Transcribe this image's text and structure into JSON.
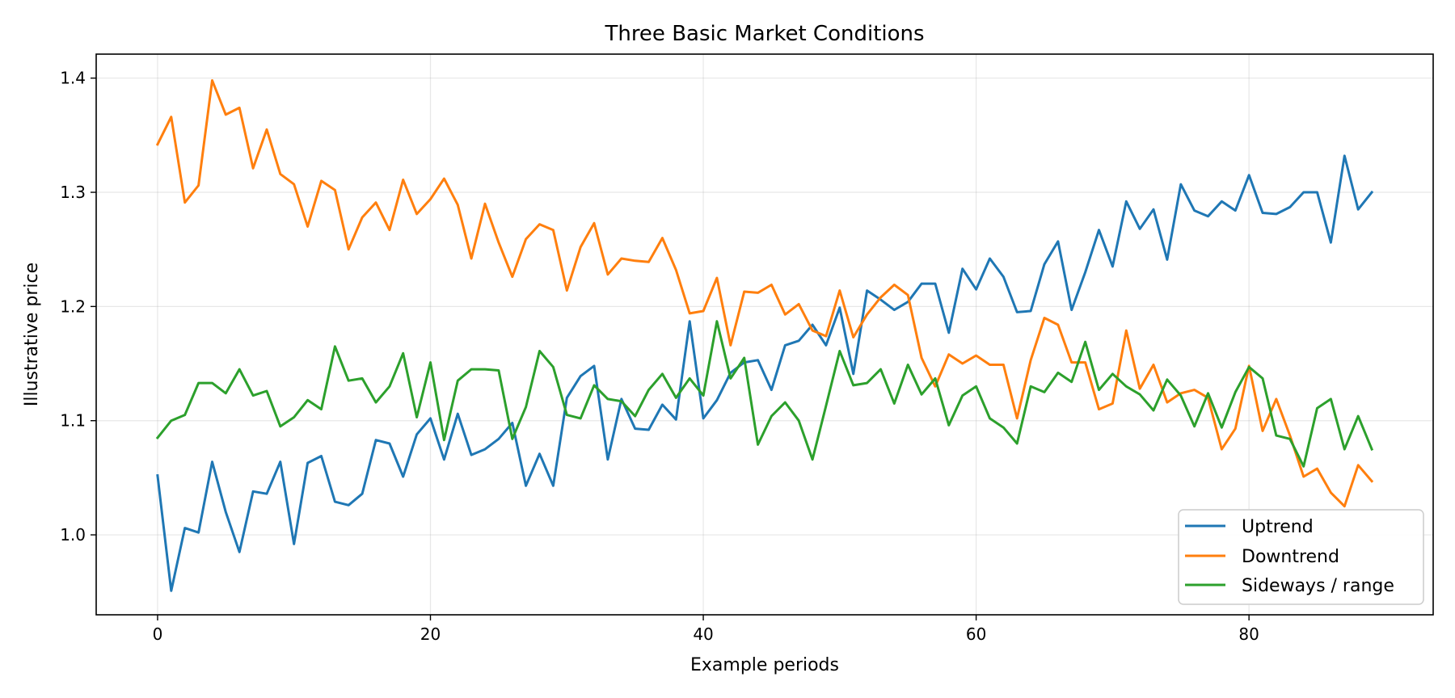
{
  "chart_data": {
    "type": "line",
    "title": "Three Basic Market Conditions",
    "xlabel": "Example periods",
    "ylabel": "Illustrative price",
    "xlim": [
      -4.5,
      93.5
    ],
    "ylim": [
      0.93,
      1.421
    ],
    "xticks": [
      0,
      20,
      40,
      60,
      80
    ],
    "yticks": [
      1.0,
      1.1,
      1.2,
      1.3,
      1.4
    ],
    "xtick_labels": [
      "0",
      "20",
      "40",
      "60",
      "80"
    ],
    "ytick_labels": [
      "1.0",
      "1.1",
      "1.2",
      "1.3",
      "1.4"
    ],
    "grid": true,
    "legend_position": "lower-right",
    "series": [
      {
        "name": "Uptrend",
        "color": "#1f77b4",
        "values": [
          1.052,
          0.951,
          1.006,
          1.002,
          1.064,
          1.02,
          0.985,
          1.038,
          1.036,
          1.064,
          0.992,
          1.063,
          1.069,
          1.029,
          1.026,
          1.036,
          1.083,
          1.08,
          1.051,
          1.088,
          1.102,
          1.066,
          1.106,
          1.07,
          1.075,
          1.084,
          1.098,
          1.043,
          1.071,
          1.043,
          1.12,
          1.139,
          1.148,
          1.066,
          1.119,
          1.093,
          1.092,
          1.114,
          1.101,
          1.187,
          1.102,
          1.118,
          1.142,
          1.151,
          1.153,
          1.127,
          1.166,
          1.17,
          1.184,
          1.166,
          1.199,
          1.141,
          1.214,
          1.206,
          1.197,
          1.204,
          1.22,
          1.22,
          1.177,
          1.233,
          1.215,
          1.242,
          1.226,
          1.195,
          1.196,
          1.237,
          1.257,
          1.197,
          1.23,
          1.267,
          1.235,
          1.292,
          1.268,
          1.285,
          1.241,
          1.307,
          1.284,
          1.279,
          1.292,
          1.284,
          1.315,
          1.282,
          1.281,
          1.287,
          1.3,
          1.3,
          1.256,
          1.332,
          1.285,
          1.3
        ]
      },
      {
        "name": "Downtrend",
        "color": "#ff7f0e",
        "values": [
          1.342,
          1.366,
          1.291,
          1.306,
          1.398,
          1.368,
          1.374,
          1.321,
          1.355,
          1.316,
          1.307,
          1.27,
          1.31,
          1.302,
          1.25,
          1.278,
          1.291,
          1.267,
          1.311,
          1.281,
          1.294,
          1.312,
          1.289,
          1.242,
          1.29,
          1.256,
          1.226,
          1.259,
          1.272,
          1.267,
          1.214,
          1.252,
          1.273,
          1.228,
          1.242,
          1.24,
          1.239,
          1.26,
          1.232,
          1.194,
          1.196,
          1.225,
          1.166,
          1.213,
          1.212,
          1.219,
          1.193,
          1.202,
          1.179,
          1.174,
          1.214,
          1.173,
          1.193,
          1.208,
          1.219,
          1.21,
          1.155,
          1.13,
          1.158,
          1.15,
          1.157,
          1.149,
          1.149,
          1.102,
          1.153,
          1.19,
          1.184,
          1.151,
          1.151,
          1.11,
          1.115,
          1.179,
          1.128,
          1.149,
          1.116,
          1.124,
          1.127,
          1.12,
          1.075,
          1.093,
          1.148,
          1.091,
          1.119,
          1.087,
          1.051,
          1.058,
          1.037,
          1.025,
          1.061,
          1.047
        ]
      },
      {
        "name": "Sideways / range",
        "color": "#2ca02c",
        "values": [
          1.085,
          1.1,
          1.105,
          1.133,
          1.133,
          1.124,
          1.145,
          1.122,
          1.126,
          1.095,
          1.103,
          1.118,
          1.11,
          1.165,
          1.135,
          1.137,
          1.116,
          1.13,
          1.159,
          1.103,
          1.151,
          1.083,
          1.135,
          1.145,
          1.145,
          1.144,
          1.084,
          1.112,
          1.161,
          1.147,
          1.105,
          1.102,
          1.131,
          1.119,
          1.117,
          1.104,
          1.127,
          1.141,
          1.12,
          1.137,
          1.122,
          1.187,
          1.137,
          1.155,
          1.079,
          1.104,
          1.116,
          1.1,
          1.066,
          1.113,
          1.161,
          1.131,
          1.133,
          1.145,
          1.115,
          1.149,
          1.123,
          1.137,
          1.096,
          1.122,
          1.13,
          1.102,
          1.094,
          1.08,
          1.13,
          1.125,
          1.142,
          1.134,
          1.169,
          1.127,
          1.141,
          1.13,
          1.123,
          1.109,
          1.136,
          1.122,
          1.095,
          1.124,
          1.094,
          1.125,
          1.147,
          1.137,
          1.087,
          1.084,
          1.06,
          1.111,
          1.119,
          1.075,
          1.104,
          1.075
        ]
      }
    ]
  }
}
